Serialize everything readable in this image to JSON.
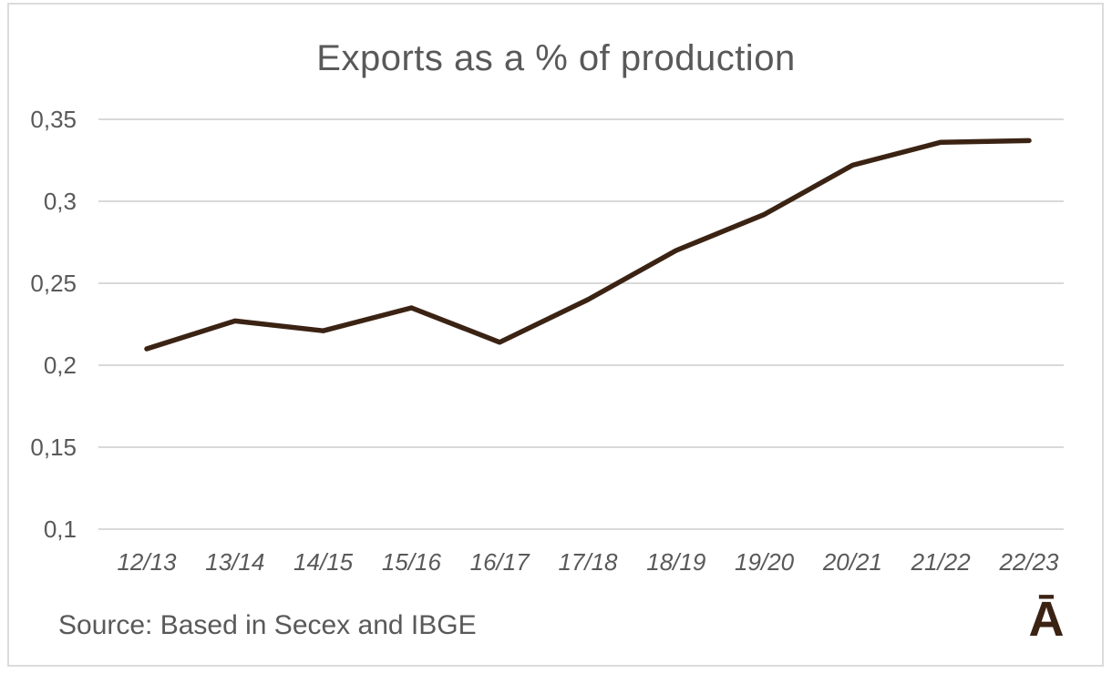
{
  "chart_data": {
    "type": "line",
    "title": "Exports as a % of production",
    "xlabel": "",
    "ylabel": "",
    "categories": [
      "12/13",
      "13/14",
      "14/15",
      "15/16",
      "16/17",
      "17/18",
      "18/19",
      "19/20",
      "20/21",
      "21/22",
      "22/23"
    ],
    "values": [
      0.21,
      0.227,
      0.221,
      0.235,
      0.214,
      0.24,
      0.27,
      0.292,
      0.322,
      0.336,
      0.337
    ],
    "ylim": [
      0.1,
      0.35
    ],
    "ytick_values": [
      0.35,
      0.3,
      0.25,
      0.2,
      0.15,
      0.1
    ],
    "ytick_labels": [
      "0,35",
      "0,3",
      "0,25",
      "0,2",
      "0,15",
      "0,1"
    ],
    "grid": true,
    "legend": false,
    "line_color": "#3b2314",
    "gridline_color": "#d9d9d9"
  },
  "footer": {
    "source_text": "Source: Based in Secex and IBGE",
    "logo_glyph": "Ā"
  },
  "colors": {
    "background": "#ffffff",
    "title_text": "#595959",
    "axis_text": "#595959",
    "border": "#dcdcdc",
    "logo": "#3b2314"
  }
}
